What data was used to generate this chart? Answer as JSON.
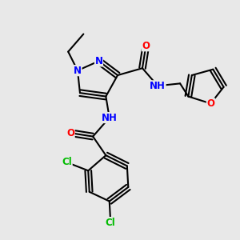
{
  "bg_color": "#e8e8e8",
  "bond_color": "#000000",
  "bond_width": 1.5,
  "atom_colors": {
    "N": "#0000ff",
    "O": "#ff0000",
    "Cl": "#00bb00",
    "C": "#000000"
  },
  "font_size": 8.5
}
